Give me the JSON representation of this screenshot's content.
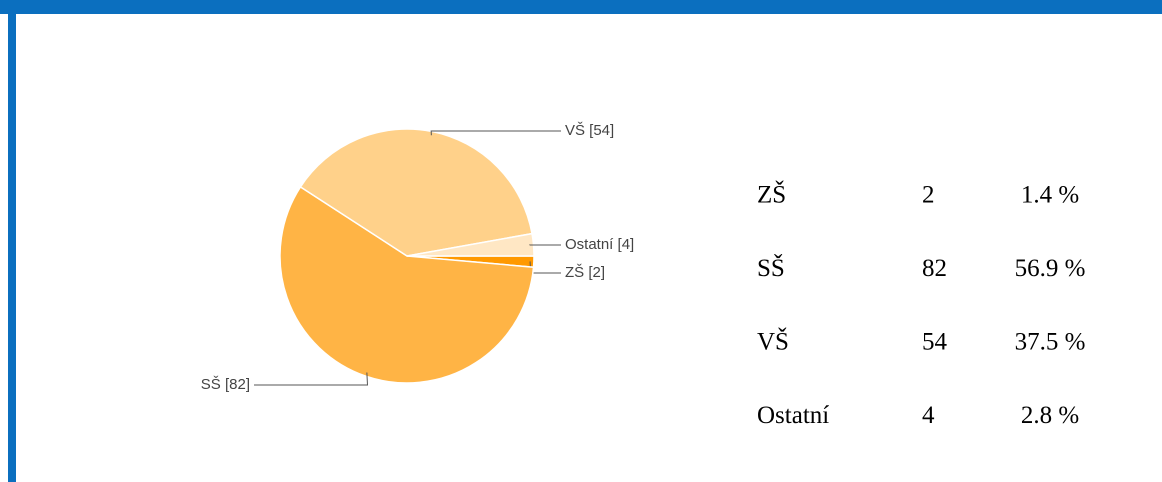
{
  "chart_data": {
    "type": "pie",
    "categories": [
      "ZŠ",
      "SŠ",
      "VŠ",
      "Ostatní"
    ],
    "values": [
      2,
      82,
      54,
      4
    ],
    "value_labels": [
      "ZŠ [2]",
      "SŠ [82]",
      "VŠ [54]",
      "Ostatní [4]"
    ],
    "colors": [
      "#ff9900",
      "#ffb445",
      "#ffd18a",
      "#ffe7c4"
    ]
  },
  "table": {
    "rows": [
      [
        "ZŠ",
        2,
        "1.4 %"
      ],
      [
        "SŠ",
        82,
        "56.9 %"
      ],
      [
        "VŠ",
        54,
        "37.5 %"
      ],
      [
        "Ostatní",
        4,
        "2.8 %"
      ]
    ]
  }
}
